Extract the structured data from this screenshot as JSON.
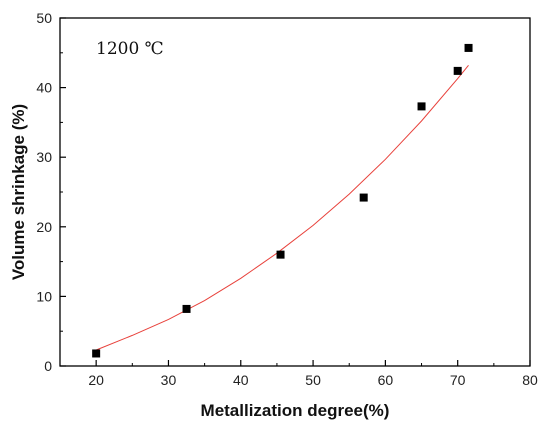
{
  "chart_data": {
    "type": "scatter",
    "xlabel": "Metallization degree(%)",
    "ylabel": "Volume shrinkage (%)",
    "annotation": "1200  ℃",
    "xlim": [
      15,
      80
    ],
    "ylim": [
      0,
      50
    ],
    "xticks": [
      20,
      30,
      40,
      50,
      60,
      70,
      80
    ],
    "yticks": [
      0,
      10,
      20,
      30,
      40,
      50
    ],
    "points": [
      {
        "x": 20.0,
        "y": 1.8
      },
      {
        "x": 32.5,
        "y": 8.2
      },
      {
        "x": 45.5,
        "y": 16.0
      },
      {
        "x": 57.0,
        "y": 24.2
      },
      {
        "x": 65.0,
        "y": 37.3
      },
      {
        "x": 70.0,
        "y": 42.4
      },
      {
        "x": 71.5,
        "y": 45.7
      }
    ],
    "fit_curve": {
      "x": [
        20,
        25,
        30,
        35,
        40,
        45,
        50,
        55,
        60,
        65,
        70,
        71.5
      ],
      "y": [
        2.3,
        4.4,
        6.7,
        9.4,
        12.6,
        16.2,
        20.2,
        24.7,
        29.7,
        35.2,
        41.3,
        43.2
      ]
    },
    "series_color": "#000000",
    "fit_color": "#e8413b",
    "grid": false
  }
}
